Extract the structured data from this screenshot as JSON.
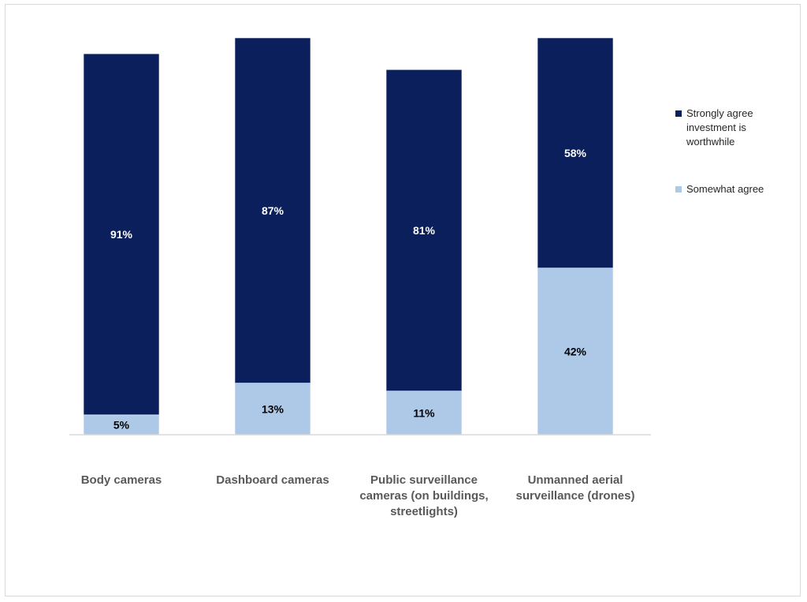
{
  "chart_data": {
    "type": "bar",
    "stacked": true,
    "title": "",
    "xlabel": "",
    "ylabel": "",
    "ylim": [
      0,
      100
    ],
    "grid": false,
    "legend_position": "right",
    "categories": [
      "Body cameras",
      "Dashboard cameras",
      "Public surveillance\ncameras (on buildings,\nstreetlights)",
      "Unmanned aerial\nsurveillance (drones)"
    ],
    "series": [
      {
        "name": "Somewhat agree",
        "color": "#aec9e8",
        "values": [
          5,
          13,
          11,
          42
        ],
        "labels": [
          "5%",
          "13%",
          "11%",
          "42%"
        ],
        "label_color": "#000000"
      },
      {
        "name": "Strongly agree investment is worthwhile",
        "color": "#0a1f5c",
        "values": [
          91,
          87,
          81,
          58
        ],
        "labels": [
          "91%",
          "87%",
          "81%",
          "58%"
        ],
        "label_color": "#ffffff"
      }
    ]
  },
  "legend": [
    {
      "label": "Strongly agree\ninvestment is\nworthwhile",
      "color": "#0a1f5c"
    },
    {
      "label": "Somewhat agree",
      "color": "#aec9e8"
    }
  ]
}
